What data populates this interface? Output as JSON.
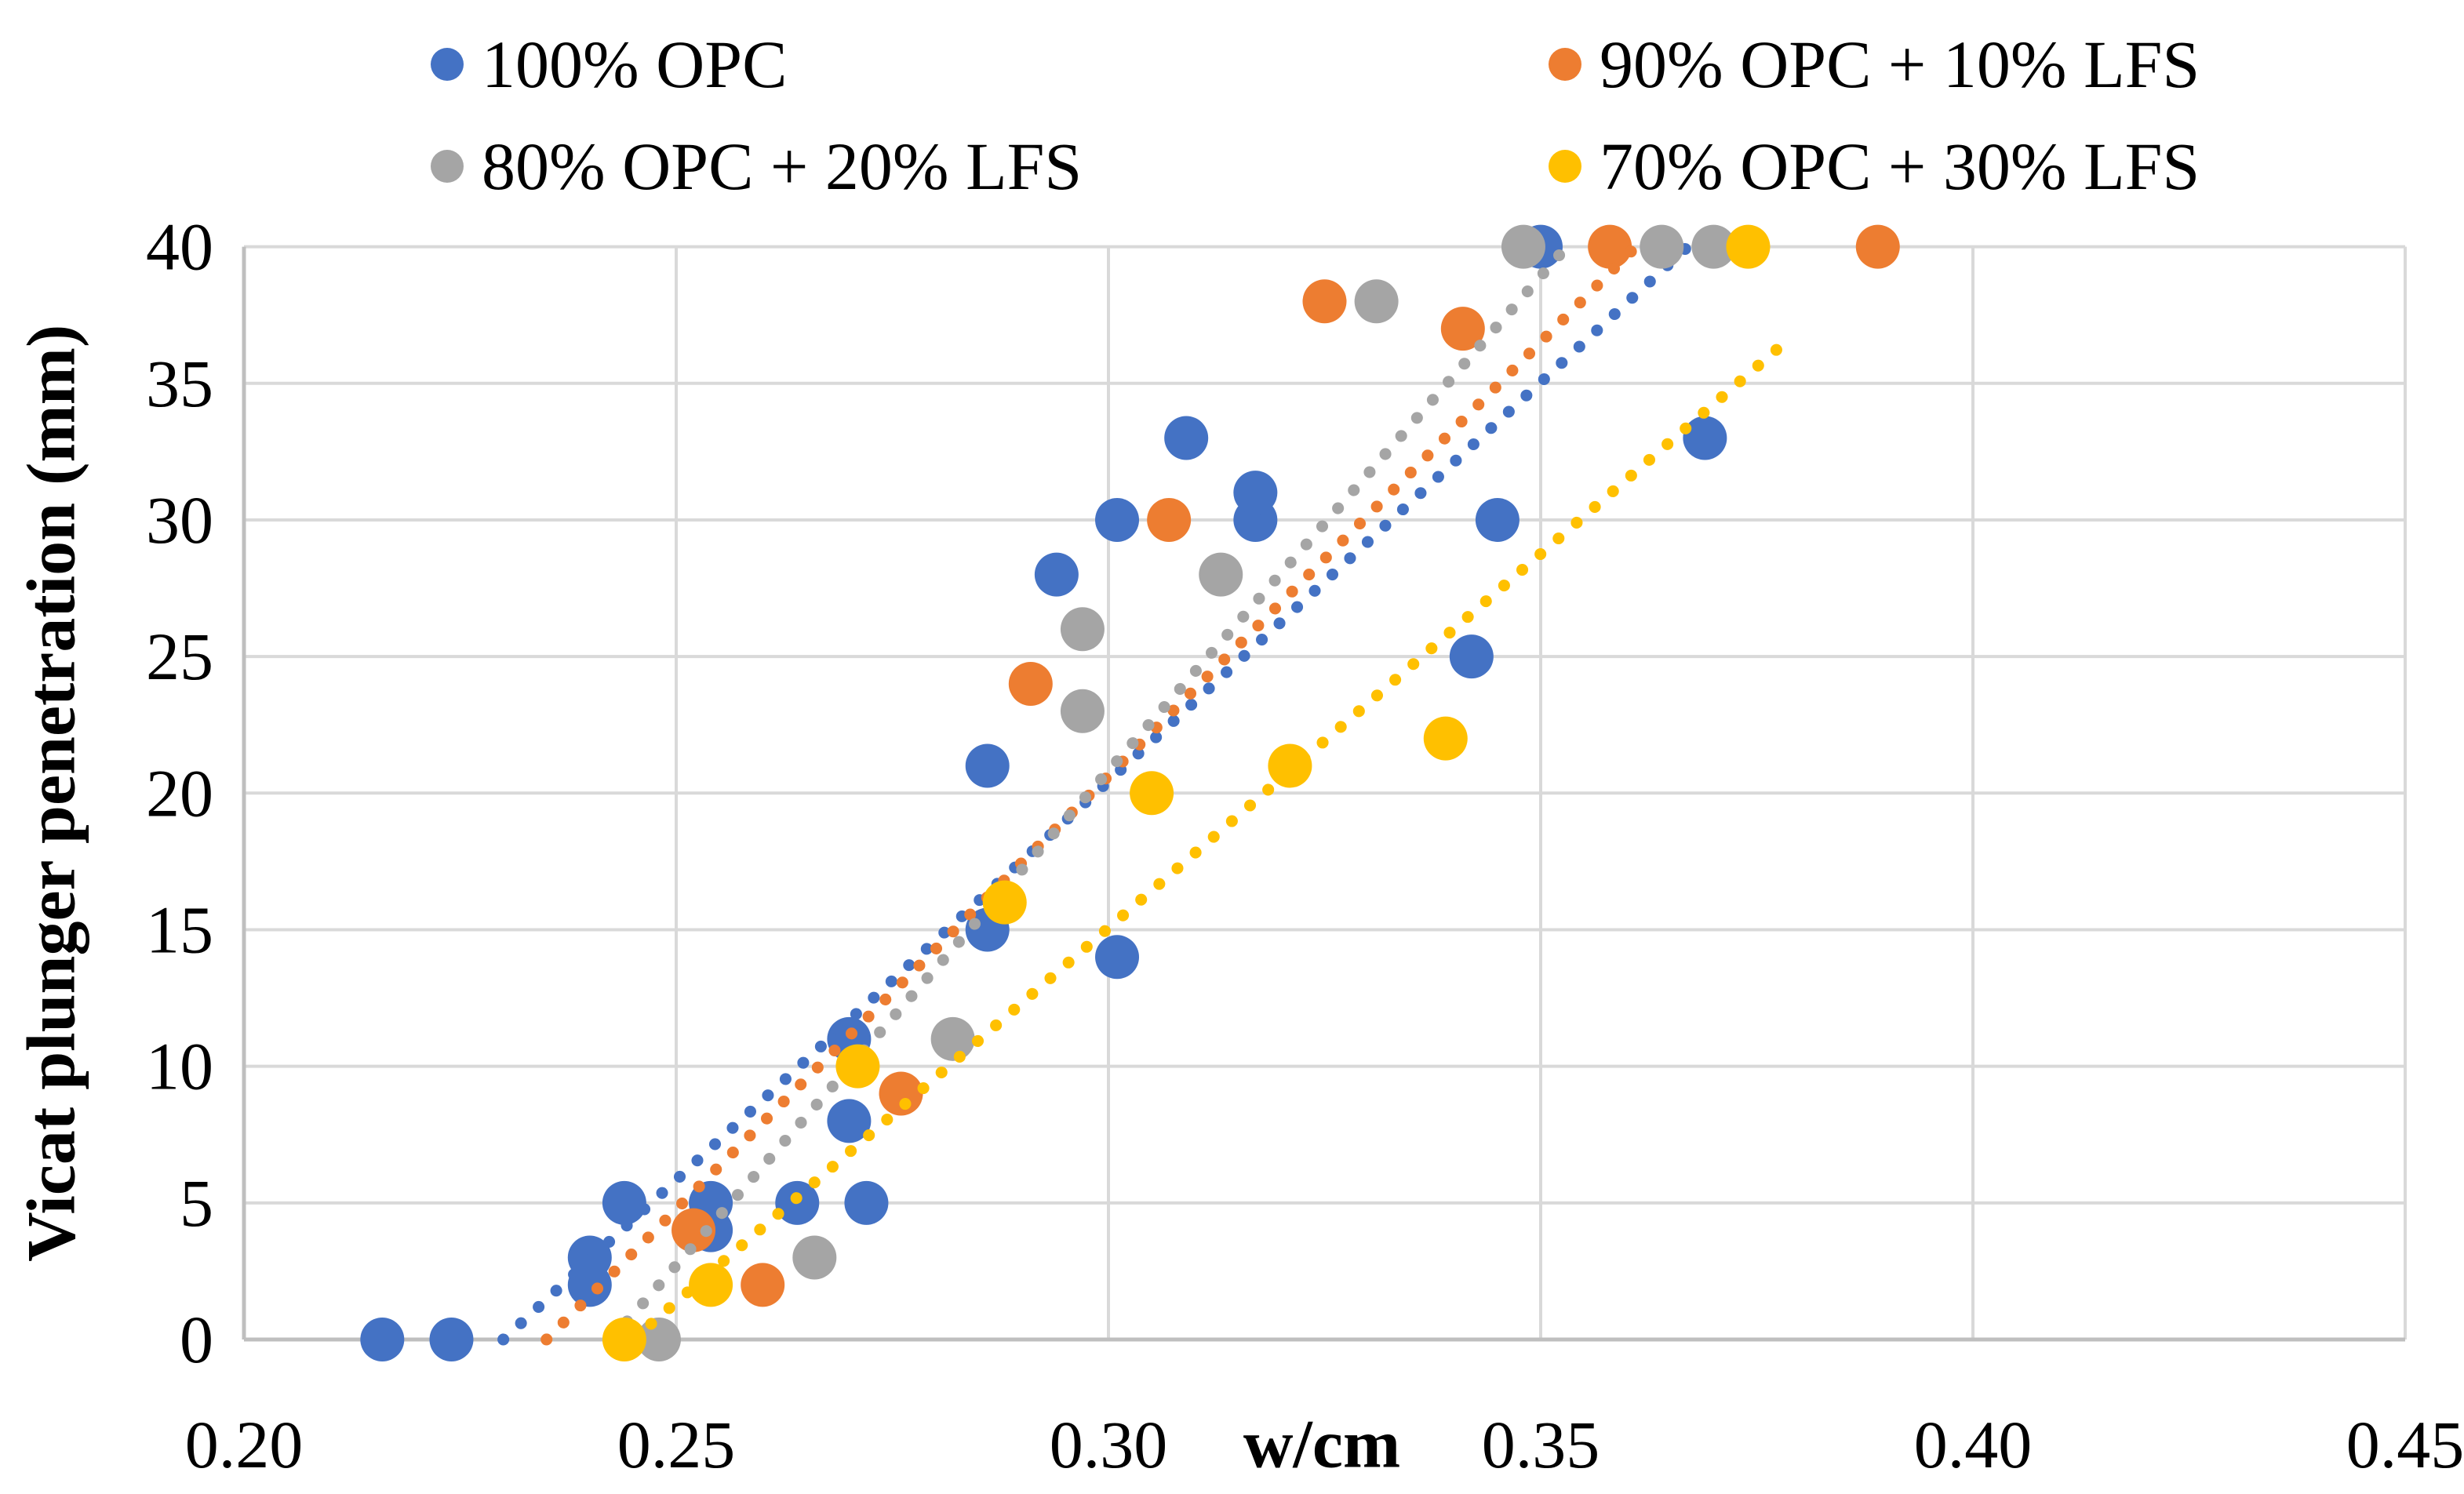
{
  "chart_data": {
    "type": "scatter",
    "title": "",
    "xlabel": "w/cm",
    "ylabel": "Vicat plunger penetration (mm)",
    "xlim": [
      0.2,
      0.45
    ],
    "ylim": [
      0,
      40
    ],
    "xtick_labels": [
      "0.20",
      "0.25",
      "0.30",
      "0.35",
      "0.40",
      "0.45"
    ],
    "xtick_values": [
      0.2,
      0.25,
      0.3,
      0.35,
      0.4,
      0.45
    ],
    "ytick_labels": [
      "0",
      "5",
      "10",
      "15",
      "20",
      "25",
      "30",
      "35",
      "40"
    ],
    "ytick_values": [
      0,
      5,
      10,
      15,
      20,
      25,
      30,
      35,
      40
    ],
    "grid": true,
    "legend_position": "top",
    "grid_color": "#D9D9D9",
    "axis_color": "#BFBFBF",
    "series": [
      {
        "name": "100% OPC",
        "color": "#4472C4",
        "points": [
          [
            0.216,
            0
          ],
          [
            0.224,
            0
          ],
          [
            0.24,
            2
          ],
          [
            0.24,
            3
          ],
          [
            0.244,
            5
          ],
          [
            0.254,
            4
          ],
          [
            0.254,
            5
          ],
          [
            0.264,
            5
          ],
          [
            0.27,
            8
          ],
          [
            0.27,
            11
          ],
          [
            0.272,
            5
          ],
          [
            0.286,
            15
          ],
          [
            0.286,
            21
          ],
          [
            0.294,
            28
          ],
          [
            0.301,
            14
          ],
          [
            0.301,
            30
          ],
          [
            0.309,
            33
          ],
          [
            0.317,
            30
          ],
          [
            0.317,
            31
          ],
          [
            0.342,
            25
          ],
          [
            0.345,
            30
          ],
          [
            0.35,
            40
          ],
          [
            0.369,
            33
          ]
        ],
        "trendline": {
          "x1": 0.23,
          "y1": 0,
          "x2": 0.367,
          "y2": 40
        }
      },
      {
        "name": "90% OPC + 10% LFS",
        "color": "#ED7D31",
        "points": [
          [
            0.252,
            4
          ],
          [
            0.26,
            2
          ],
          [
            0.276,
            9
          ],
          [
            0.291,
            24
          ],
          [
            0.307,
            30
          ],
          [
            0.325,
            38
          ],
          [
            0.341,
            37
          ],
          [
            0.358,
            40
          ],
          [
            0.389,
            40
          ]
        ],
        "trendline": {
          "x1": 0.235,
          "y1": 0,
          "x2": 0.361,
          "y2": 40
        }
      },
      {
        "name": "80% OPC + 20% LFS",
        "color": "#A5A5A5",
        "points": [
          [
            0.248,
            0
          ],
          [
            0.266,
            3
          ],
          [
            0.282,
            11
          ],
          [
            0.297,
            23
          ],
          [
            0.297,
            26
          ],
          [
            0.313,
            28
          ],
          [
            0.331,
            38
          ],
          [
            0.348,
            40
          ],
          [
            0.364,
            40
          ],
          [
            0.37,
            40
          ]
        ],
        "trendline": {
          "x1": 0.2425,
          "y1": 0,
          "x2": 0.353,
          "y2": 40
        }
      },
      {
        "name": "70% OPC + 30% LFS",
        "color": "#FFC000",
        "points": [
          [
            0.244,
            0
          ],
          [
            0.254,
            2
          ],
          [
            0.271,
            10
          ],
          [
            0.288,
            16
          ],
          [
            0.305,
            20
          ],
          [
            0.321,
            21
          ],
          [
            0.339,
            22
          ],
          [
            0.374,
            40
          ]
        ],
        "trendline": {
          "x1": 0.245,
          "y1": 0,
          "x2": 0.379,
          "y2": 36.7
        }
      }
    ]
  }
}
